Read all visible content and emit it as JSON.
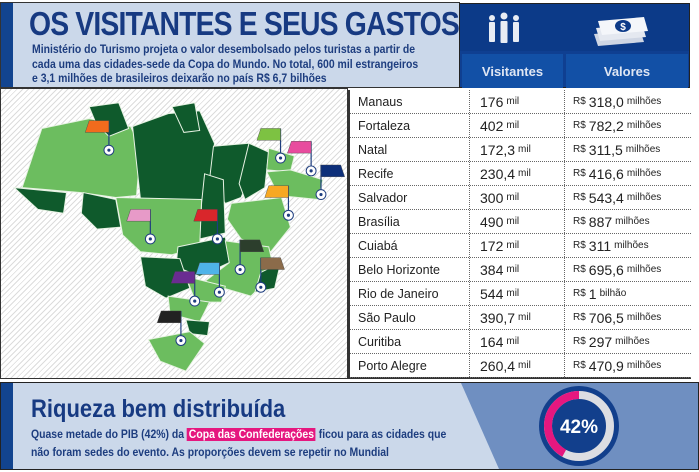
{
  "header": {
    "title": "OS VISITANTES E SEUS GASTOS",
    "subtitle": "Ministério do Turismo projeta o valor desembolsado pelos turistas a partir de cada uma das cidades-sede da Copa do Mundo. No total, 600 mil estrangeiros e 3,1 milhões de brasileiros deixarão no país R$ 6,7 bilhões"
  },
  "columns": {
    "visitors": "Visitantes",
    "values": "Valores",
    "visitors_icon": "people-icon",
    "values_icon": "money-stack-icon"
  },
  "currency": "R$",
  "rows": [
    {
      "city": "Manaus",
      "visitors": "176",
      "visitors_unit": "mil",
      "value": "318,0",
      "value_unit": "milhões",
      "flag_color": "#f26b1d"
    },
    {
      "city": "Fortaleza",
      "visitors": "402",
      "visitors_unit": "mil",
      "value": "782,2",
      "value_unit": "milhões",
      "flag_color": "#7dc242"
    },
    {
      "city": "Natal",
      "visitors": "172,3",
      "visitors_unit": "mil",
      "value": "311,5",
      "value_unit": "milhões",
      "flag_color": "#e84c9e"
    },
    {
      "city": "Recife",
      "visitors": "230,4",
      "visitors_unit": "mil",
      "value": "416,6",
      "value_unit": "milhões",
      "flag_color": "#0d2f7a"
    },
    {
      "city": "Salvador",
      "visitors": "300",
      "visitors_unit": "mil",
      "value": "543,4",
      "value_unit": "milhões",
      "flag_color": "#f7a823"
    },
    {
      "city": "Brasília",
      "visitors": "490",
      "visitors_unit": "mil",
      "value": "887",
      "value_unit": "milhões",
      "flag_color": "#d9262b"
    },
    {
      "city": "Cuiabá",
      "visitors": "172",
      "visitors_unit": "mil",
      "value": "311",
      "value_unit": "milhões",
      "flag_color": "#e79ac8"
    },
    {
      "city": "Belo Horizonte",
      "visitors": "384",
      "visitors_unit": "mil",
      "value": "695,6",
      "value_unit": "milhões",
      "flag_color": "#2c3e2c"
    },
    {
      "city": "Rio de Janeiro",
      "visitors": "544",
      "visitors_unit": "mil",
      "value": "1",
      "value_unit": "bilhão",
      "flag_color": "#8b6b4a"
    },
    {
      "city": "São Paulo",
      "visitors": "390,7",
      "visitors_unit": "mil",
      "value": "706,5",
      "value_unit": "milhões",
      "flag_color": "#4fb3e8"
    },
    {
      "city": "Curitiba",
      "visitors": "164",
      "visitors_unit": "mil",
      "value": "297",
      "value_unit": "milhões",
      "flag_color": "#6a2c91"
    },
    {
      "city": "Porto Alegre",
      "visitors": "260,4",
      "visitors_unit": "mil",
      "value": "470,9",
      "value_unit": "milhões",
      "flag_color": "#222222"
    }
  ],
  "banner": {
    "title": "Riqueza bem distribuída",
    "text_before": "Quase metade do PIB (42%) da ",
    "highlight": "Copa das Confederações",
    "text_after": " ficou para as cidades que não foram sedes do evento. As proporções devem se repetir no Mundial",
    "percent_label": "42%",
    "percent_value": 42,
    "accent": "#e5177f"
  }
}
